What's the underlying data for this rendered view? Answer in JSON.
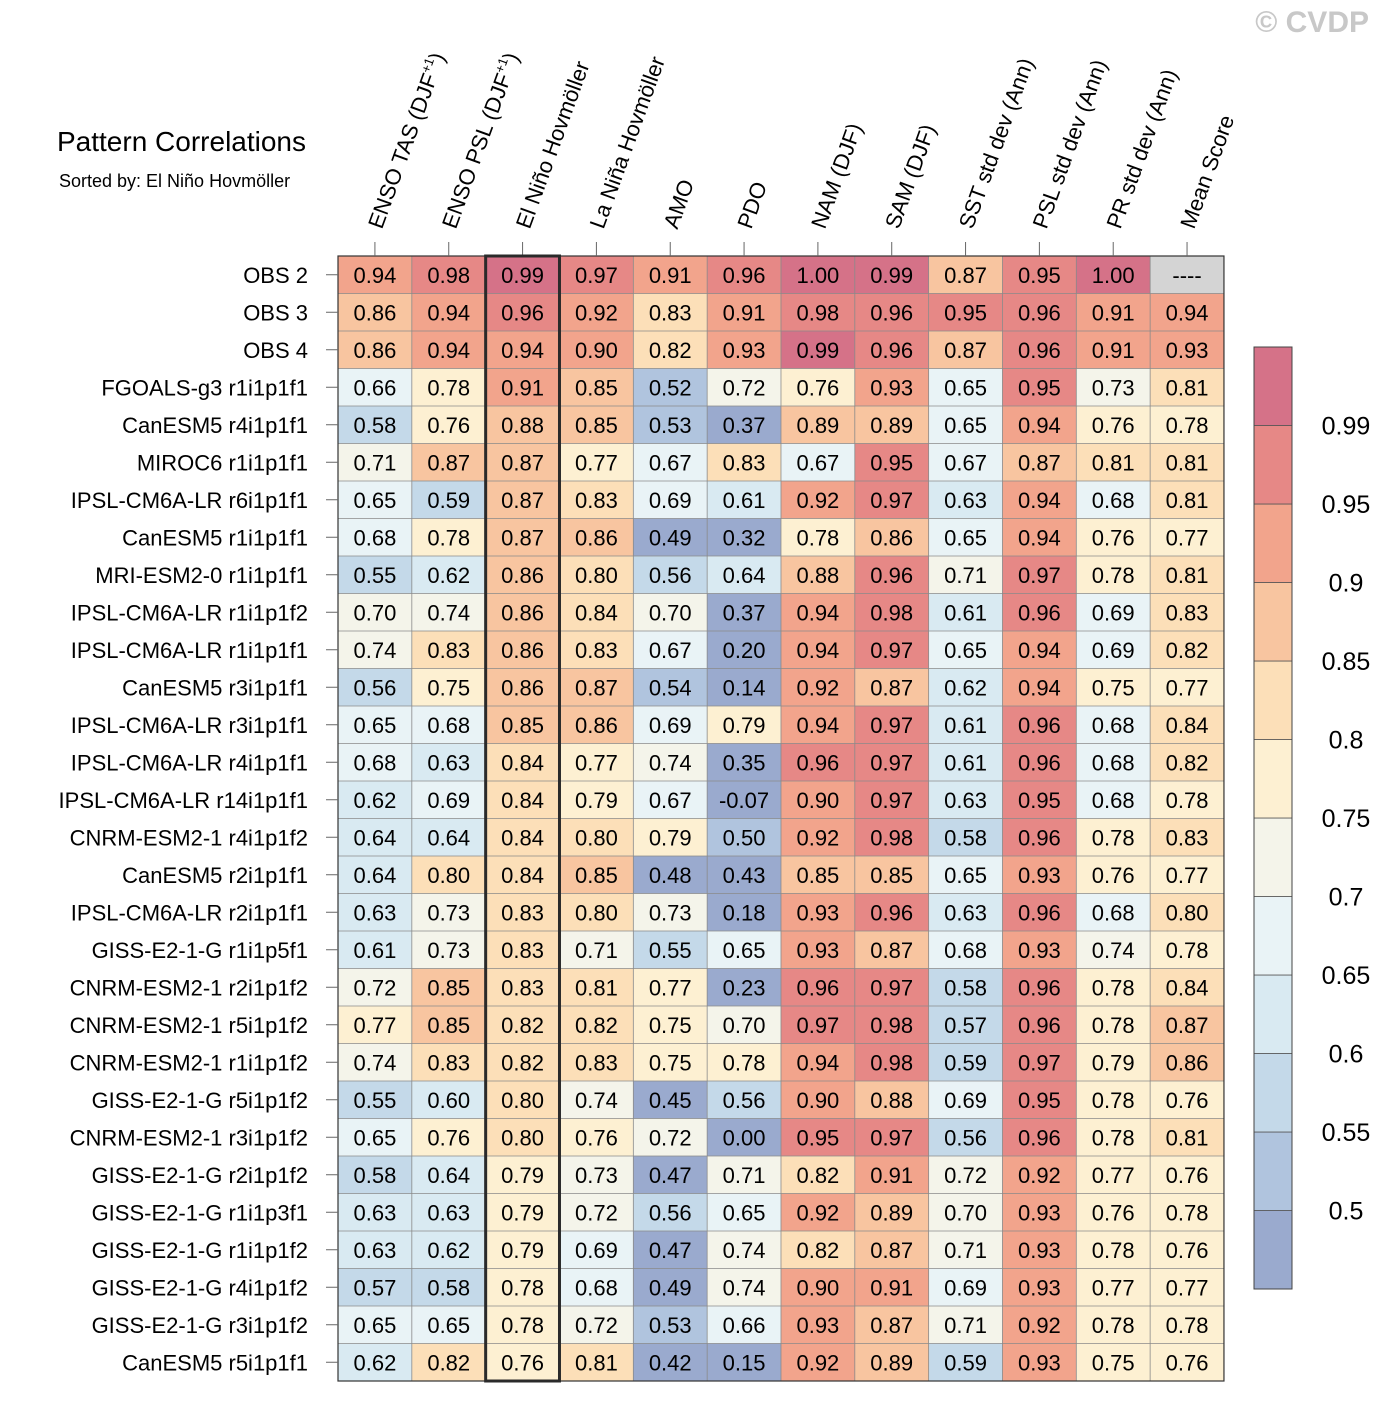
{
  "watermark": "© CVDP",
  "chart_data": {
    "type": "heatmap",
    "title": "Pattern Correlations",
    "subtitle": "Sorted by: El Niño Hovmöller",
    "highlighted_column": "El Niño Hovmöller",
    "columns": [
      {
        "label": "ENSO TAS (DJF",
        "sup": "+1",
        "tail": ")"
      },
      {
        "label": "ENSO PSL (DJF",
        "sup": "+1",
        "tail": ")"
      },
      {
        "label": "El Niño Hovmöller",
        "sup": "",
        "tail": ""
      },
      {
        "label": "La Niña Hovmöller",
        "sup": "",
        "tail": ""
      },
      {
        "label": "AMO",
        "sup": "",
        "tail": ""
      },
      {
        "label": "PDO",
        "sup": "",
        "tail": ""
      },
      {
        "label": "NAM (DJF)",
        "sup": "",
        "tail": ""
      },
      {
        "label": "SAM (DJF)",
        "sup": "",
        "tail": ""
      },
      {
        "label": "SST std dev (Ann)",
        "sup": "",
        "tail": ""
      },
      {
        "label": "PSL std dev (Ann)",
        "sup": "",
        "tail": ""
      },
      {
        "label": "PR std dev (Ann)",
        "sup": "",
        "tail": ""
      },
      {
        "label": "Mean Score",
        "sup": "",
        "tail": ""
      }
    ],
    "rows": [
      {
        "name": "OBS 2",
        "values": [
          "0.94",
          "0.98",
          "0.99",
          "0.97",
          "0.91",
          "0.96",
          "1.00",
          "0.99",
          "0.87",
          "0.95",
          "1.00",
          "----"
        ]
      },
      {
        "name": "OBS 3",
        "values": [
          "0.86",
          "0.94",
          "0.96",
          "0.92",
          "0.83",
          "0.91",
          "0.98",
          "0.96",
          "0.95",
          "0.96",
          "0.91",
          "0.94"
        ]
      },
      {
        "name": "OBS 4",
        "values": [
          "0.86",
          "0.94",
          "0.94",
          "0.90",
          "0.82",
          "0.93",
          "0.99",
          "0.96",
          "0.87",
          "0.96",
          "0.91",
          "0.93"
        ]
      },
      {
        "name": "FGOALS-g3 r1i1p1f1",
        "values": [
          "0.66",
          "0.78",
          "0.91",
          "0.85",
          "0.52",
          "0.72",
          "0.76",
          "0.93",
          "0.65",
          "0.95",
          "0.73",
          "0.81"
        ]
      },
      {
        "name": "CanESM5 r4i1p1f1",
        "values": [
          "0.58",
          "0.76",
          "0.88",
          "0.85",
          "0.53",
          "0.37",
          "0.89",
          "0.89",
          "0.65",
          "0.94",
          "0.76",
          "0.78"
        ]
      },
      {
        "name": "MIROC6 r1i1p1f1",
        "values": [
          "0.71",
          "0.87",
          "0.87",
          "0.77",
          "0.67",
          "0.83",
          "0.67",
          "0.95",
          "0.67",
          "0.87",
          "0.81",
          "0.81"
        ]
      },
      {
        "name": "IPSL-CM6A-LR r6i1p1f1",
        "values": [
          "0.65",
          "0.59",
          "0.87",
          "0.83",
          "0.69",
          "0.61",
          "0.92",
          "0.97",
          "0.63",
          "0.94",
          "0.68",
          "0.81"
        ]
      },
      {
        "name": "CanESM5 r1i1p1f1",
        "values": [
          "0.68",
          "0.78",
          "0.87",
          "0.86",
          "0.49",
          "0.32",
          "0.78",
          "0.86",
          "0.65",
          "0.94",
          "0.76",
          "0.77"
        ]
      },
      {
        "name": "MRI-ESM2-0 r1i1p1f1",
        "values": [
          "0.55",
          "0.62",
          "0.86",
          "0.80",
          "0.56",
          "0.64",
          "0.88",
          "0.96",
          "0.71",
          "0.97",
          "0.78",
          "0.81"
        ]
      },
      {
        "name": "IPSL-CM6A-LR r1i1p1f2",
        "values": [
          "0.70",
          "0.74",
          "0.86",
          "0.84",
          "0.70",
          "0.37",
          "0.94",
          "0.98",
          "0.61",
          "0.96",
          "0.69",
          "0.83"
        ]
      },
      {
        "name": "IPSL-CM6A-LR r1i1p1f1",
        "values": [
          "0.74",
          "0.83",
          "0.86",
          "0.83",
          "0.67",
          "0.20",
          "0.94",
          "0.97",
          "0.65",
          "0.94",
          "0.69",
          "0.82"
        ]
      },
      {
        "name": "CanESM5 r3i1p1f1",
        "values": [
          "0.56",
          "0.75",
          "0.86",
          "0.87",
          "0.54",
          "0.14",
          "0.92",
          "0.87",
          "0.62",
          "0.94",
          "0.75",
          "0.77"
        ]
      },
      {
        "name": "IPSL-CM6A-LR r3i1p1f1",
        "values": [
          "0.65",
          "0.68",
          "0.85",
          "0.86",
          "0.69",
          "0.79",
          "0.94",
          "0.97",
          "0.61",
          "0.96",
          "0.68",
          "0.84"
        ]
      },
      {
        "name": "IPSL-CM6A-LR r4i1p1f1",
        "values": [
          "0.68",
          "0.63",
          "0.84",
          "0.77",
          "0.74",
          "0.35",
          "0.96",
          "0.97",
          "0.61",
          "0.96",
          "0.68",
          "0.82"
        ]
      },
      {
        "name": "IPSL-CM6A-LR r14i1p1f1",
        "values": [
          "0.62",
          "0.69",
          "0.84",
          "0.79",
          "0.67",
          "-0.07",
          "0.90",
          "0.97",
          "0.63",
          "0.95",
          "0.68",
          "0.78"
        ]
      },
      {
        "name": "CNRM-ESM2-1 r4i1p1f2",
        "values": [
          "0.64",
          "0.64",
          "0.84",
          "0.80",
          "0.79",
          "0.50",
          "0.92",
          "0.98",
          "0.58",
          "0.96",
          "0.78",
          "0.83"
        ]
      },
      {
        "name": "CanESM5 r2i1p1f1",
        "values": [
          "0.64",
          "0.80",
          "0.84",
          "0.85",
          "0.48",
          "0.43",
          "0.85",
          "0.85",
          "0.65",
          "0.93",
          "0.76",
          "0.77"
        ]
      },
      {
        "name": "IPSL-CM6A-LR r2i1p1f1",
        "values": [
          "0.63",
          "0.73",
          "0.83",
          "0.80",
          "0.73",
          "0.18",
          "0.93",
          "0.96",
          "0.63",
          "0.96",
          "0.68",
          "0.80"
        ]
      },
      {
        "name": "GISS-E2-1-G r1i1p5f1",
        "values": [
          "0.61",
          "0.73",
          "0.83",
          "0.71",
          "0.55",
          "0.65",
          "0.93",
          "0.87",
          "0.68",
          "0.93",
          "0.74",
          "0.78"
        ]
      },
      {
        "name": "CNRM-ESM2-1 r2i1p1f2",
        "values": [
          "0.72",
          "0.85",
          "0.83",
          "0.81",
          "0.77",
          "0.23",
          "0.96",
          "0.97",
          "0.58",
          "0.96",
          "0.78",
          "0.84"
        ]
      },
      {
        "name": "CNRM-ESM2-1 r5i1p1f2",
        "values": [
          "0.77",
          "0.85",
          "0.82",
          "0.82",
          "0.75",
          "0.70",
          "0.97",
          "0.98",
          "0.57",
          "0.96",
          "0.78",
          "0.87"
        ]
      },
      {
        "name": "CNRM-ESM2-1 r1i1p1f2",
        "values": [
          "0.74",
          "0.83",
          "0.82",
          "0.83",
          "0.75",
          "0.78",
          "0.94",
          "0.98",
          "0.59",
          "0.97",
          "0.79",
          "0.86"
        ]
      },
      {
        "name": "GISS-E2-1-G r5i1p1f2",
        "values": [
          "0.55",
          "0.60",
          "0.80",
          "0.74",
          "0.45",
          "0.56",
          "0.90",
          "0.88",
          "0.69",
          "0.95",
          "0.78",
          "0.76"
        ]
      },
      {
        "name": "CNRM-ESM2-1 r3i1p1f2",
        "values": [
          "0.65",
          "0.76",
          "0.80",
          "0.76",
          "0.72",
          "0.00",
          "0.95",
          "0.97",
          "0.56",
          "0.96",
          "0.78",
          "0.81"
        ]
      },
      {
        "name": "GISS-E2-1-G r2i1p1f2",
        "values": [
          "0.58",
          "0.64",
          "0.79",
          "0.73",
          "0.47",
          "0.71",
          "0.82",
          "0.91",
          "0.72",
          "0.92",
          "0.77",
          "0.76"
        ]
      },
      {
        "name": "GISS-E2-1-G r1i1p3f1",
        "values": [
          "0.63",
          "0.63",
          "0.79",
          "0.72",
          "0.56",
          "0.65",
          "0.92",
          "0.89",
          "0.70",
          "0.93",
          "0.76",
          "0.78"
        ]
      },
      {
        "name": "GISS-E2-1-G r1i1p1f2",
        "values": [
          "0.63",
          "0.62",
          "0.79",
          "0.69",
          "0.47",
          "0.74",
          "0.82",
          "0.87",
          "0.71",
          "0.93",
          "0.78",
          "0.76"
        ]
      },
      {
        "name": "GISS-E2-1-G r4i1p1f2",
        "values": [
          "0.57",
          "0.58",
          "0.78",
          "0.68",
          "0.49",
          "0.74",
          "0.90",
          "0.91",
          "0.69",
          "0.93",
          "0.77",
          "0.77"
        ]
      },
      {
        "name": "GISS-E2-1-G r3i1p1f2",
        "values": [
          "0.65",
          "0.65",
          "0.78",
          "0.72",
          "0.53",
          "0.66",
          "0.93",
          "0.87",
          "0.71",
          "0.92",
          "0.78",
          "0.78"
        ]
      },
      {
        "name": "CanESM5 r5i1p1f1",
        "values": [
          "0.62",
          "0.82",
          "0.76",
          "0.81",
          "0.42",
          "0.15",
          "0.92",
          "0.89",
          "0.59",
          "0.93",
          "0.75",
          "0.76"
        ]
      }
    ],
    "colorbar": {
      "levels": [
        0.5,
        0.55,
        0.6,
        0.65,
        0.7,
        0.75,
        0.8,
        0.85,
        0.9,
        0.95,
        0.99
      ],
      "tick_labels": [
        "0.5",
        "0.55",
        "0.6",
        "0.65",
        "0.7",
        "0.75",
        "0.8",
        "0.85",
        "0.9",
        "0.95",
        "0.99"
      ],
      "colors": [
        "#9aaace",
        "#b0c4de",
        "#c4d9e9",
        "#d9eaf2",
        "#e9f3f6",
        "#f4f4ea",
        "#fdf0d2",
        "#fcdfb8",
        "#f8c5a0",
        "#f2a48c",
        "#e68886",
        "#d57288"
      ],
      "missing_color": "#d4d4d4"
    }
  }
}
